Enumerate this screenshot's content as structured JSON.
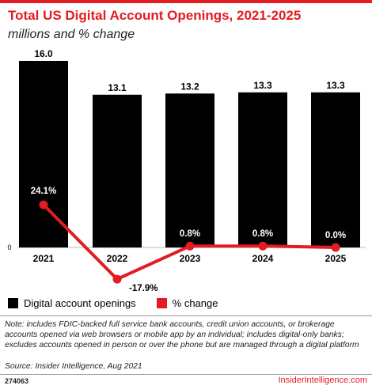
{
  "header": {
    "title": "Total US Digital Account Openings, 2021-2025",
    "subtitle": "millions and % change"
  },
  "chart_data": {
    "type": "bar",
    "categories": [
      "2021",
      "2022",
      "2023",
      "2024",
      "2025"
    ],
    "series": [
      {
        "name": "Digital account openings",
        "type": "bar",
        "values": [
          16.0,
          13.1,
          13.2,
          13.3,
          13.3
        ],
        "labels": [
          "16.0",
          "13.1",
          "13.2",
          "13.3",
          "13.3"
        ]
      },
      {
        "name": "% change",
        "type": "line",
        "values": [
          24.1,
          -17.9,
          0.8,
          0.8,
          0.0
        ],
        "labels": [
          "24.1%",
          "-17.9%",
          "0.8%",
          "0.8%",
          "0.0%"
        ]
      }
    ],
    "zero_label": "0",
    "colors": {
      "bar": "#000000",
      "line": "#e31b23"
    }
  },
  "legend": {
    "bar_label": "Digital account openings",
    "line_label": "% change"
  },
  "footer": {
    "note": "Note: includes FDIC-backed full service bank accounts, credit union accounts, or brokerage accounts opened via web browsers or mobile app by an individual; includes digital-only banks; excludes accounts opened in person or over the phone but are managed through a digital platform",
    "source": "Source: Insider Intelligence, Aug 2021",
    "chart_id": "274063",
    "brand": "InsiderIntelligence.com"
  }
}
